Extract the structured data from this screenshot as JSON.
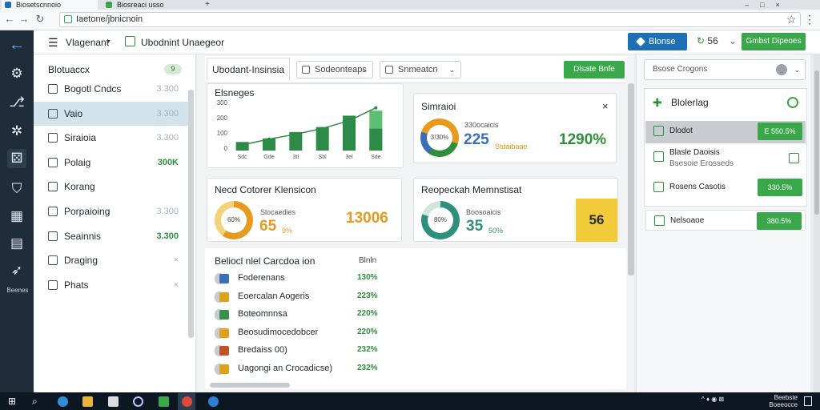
{
  "browser": {
    "tabs": [
      {
        "title": "Biosetscnnoio",
        "active": true
      },
      {
        "title": "Biosreaci usso"
      }
    ],
    "url": "Iaetone/jbnicnoin"
  },
  "rail": {
    "icons": [
      "back-arrow-icon",
      "gear-icon",
      "link-icon",
      "nodes-icon",
      "dice-icon",
      "shield-icon",
      "chart-icon",
      "document-icon",
      "tag-icon"
    ],
    "label": "Beenes"
  },
  "header": {
    "menu_label": "Vlagenant",
    "page_label": "Ubodnint Unaegeor",
    "primary_button": "Blonse",
    "spinner_value": "56",
    "success_button": "Gmbst Dipeoes",
    "accent": "#1d6fb6",
    "success": "#3aa84a"
  },
  "left": {
    "title": "Blotuaccx",
    "badge": "9",
    "items": [
      {
        "label": "Bogotl Cndcs",
        "value": "3.300"
      },
      {
        "label": "Vaio",
        "value": "3.300",
        "selected": true
      },
      {
        "label": "Siraioia",
        "value": "3.300"
      },
      {
        "label": "Polaig",
        "value": "300K",
        "green": true
      },
      {
        "label": "Korang",
        "value": ""
      },
      {
        "label": "Porpaioing",
        "value": "3.300"
      },
      {
        "label": "Seainnis",
        "value": "3.300",
        "green": true
      },
      {
        "label": "Draging",
        "value": "×"
      },
      {
        "label": "Phats",
        "value": "×"
      }
    ]
  },
  "center": {
    "active_tab": "Ubodant-Insinsia",
    "dropdown1": "Sodeonteaps",
    "dropdown2": "Snmeatcn",
    "add_button": "Dlsate Bnfe"
  },
  "chart_data": {
    "type": "bar",
    "title": "Elsneges",
    "categories": [
      "Sdc",
      "Gde",
      "3tl",
      "Sbl",
      "3el",
      "Sde"
    ],
    "values": [
      60,
      85,
      130,
      165,
      245,
      280
    ],
    "line": [
      40,
      80,
      115,
      155,
      210,
      300
    ],
    "yticks": [
      "300",
      "200",
      "100",
      "0"
    ],
    "ylim": [
      0,
      360
    ],
    "colors": {
      "bar": "#2e8b47",
      "bar_top": "#5cbf72",
      "line": "#2e8b47"
    }
  },
  "stat1": {
    "title": "Simraioi",
    "ring_label": "3!30%",
    "top_label": "330ocaicis",
    "big": "225",
    "sub": "Stdaibaae",
    "right": "1290%"
  },
  "stat2": {
    "title": "Necd Cotorer Klensicon",
    "ring_label": "60%",
    "top_label": "Slocaedies",
    "big": "65",
    "sub": "9%",
    "right": "13006"
  },
  "stat3": {
    "title": "Reopeckah Memnstisat",
    "ring_label": "80%",
    "top_label": "Boosoaicis",
    "big": "35",
    "sub": "50%",
    "right": "56"
  },
  "list": {
    "title": "Beliocl nlel Carcdoa ion",
    "header": "Blnln",
    "rows": [
      {
        "label": "Foderenans",
        "value": "130%",
        "color": "#3a6fb6"
      },
      {
        "label": "Eoercalan Aogeris",
        "value": "223%",
        "color": "#e0a21e"
      },
      {
        "label": "Boteomnnsa",
        "value": "220%",
        "color": "#3a8f4a"
      },
      {
        "label": "Beosudimocedobcer",
        "value": "220%",
        "color": "#e0a21e"
      },
      {
        "label": "Bredaiss 00)",
        "value": "232%",
        "color": "#c0532a"
      },
      {
        "label": "Uagongi an Crocadicse)",
        "value": "232%",
        "color": "#e0a21e"
      }
    ]
  },
  "right": {
    "select": "Bsose Crogons",
    "card_title": "Blolerlag",
    "rows": [
      {
        "label": "Dlodot",
        "badge": "E 550.5%",
        "selected": true
      },
      {
        "label": "Blasle Daoisis",
        "sublabel": "Bsesoie Erosseds",
        "badge": ""
      },
      {
        "label": "Rosens Casotis",
        "badge": "330.5%"
      },
      {
        "label": "Nelsoaoe",
        "badge": "380.5%"
      }
    ]
  },
  "taskbar": {
    "tray": "^ ♦ ◉ ⊠",
    "time": "Beebste",
    "date": "Boeeocce"
  }
}
